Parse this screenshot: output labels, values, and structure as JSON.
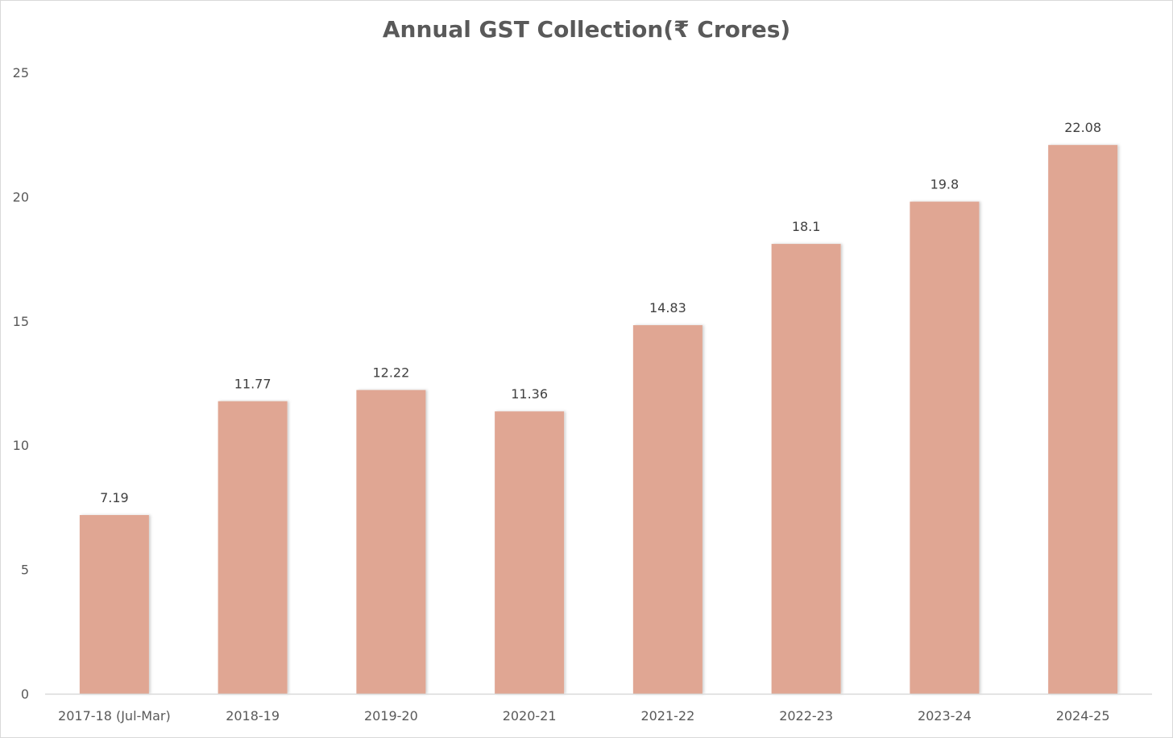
{
  "chart_data": {
    "type": "bar",
    "title": "Annual GST Collection(₹ Crores)",
    "xlabel": "",
    "ylabel": "",
    "categories": [
      "2017-18 (Jul-Mar)",
      "2018-19",
      "2019-20",
      "2020-21",
      "2021-22",
      "2022-23",
      "2023-24",
      "2024-25"
    ],
    "values": [
      7.19,
      11.77,
      12.22,
      11.36,
      14.83,
      18.1,
      19.8,
      22.08
    ],
    "data_labels": [
      "7.19",
      "11.77",
      "12.22",
      "11.36",
      "14.83",
      "18.1",
      "19.8",
      "22.08"
    ],
    "ylim": [
      0,
      25
    ],
    "yticks": [
      0,
      5,
      10,
      15,
      20,
      25
    ],
    "grid": false,
    "legend": "none",
    "bar_color": "#e0a693"
  }
}
